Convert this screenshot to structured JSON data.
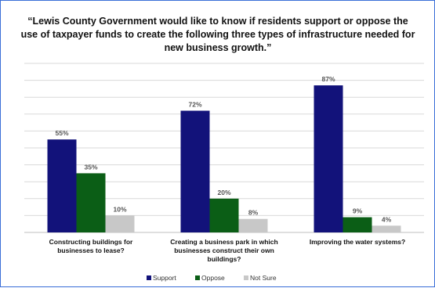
{
  "chart_data": {
    "type": "bar",
    "title": "“Lewis County Government would like to know if residents support or oppose the use of taxpayer funds to create the following three types of infrastructure needed for new business growth.”",
    "categories": [
      "Constructing buildings for businesses to lease?",
      "Creating a business park in which businesses construct their own buildings?",
      "Improving the water systems?"
    ],
    "series": [
      {
        "name": "Support",
        "values": [
          55,
          72,
          87
        ],
        "labels": [
          "55%",
          "72%",
          "87%"
        ],
        "color": "#12127a"
      },
      {
        "name": "Oppose",
        "values": [
          35,
          20,
          9
        ],
        "labels": [
          "35%",
          "20%",
          "9%"
        ],
        "color": "#0b5e16"
      },
      {
        "name": "Not Sure",
        "values": [
          10,
          8,
          4
        ],
        "labels": [
          "10%",
          "8%",
          "4%"
        ],
        "color": "#c8c8c8"
      }
    ],
    "ylim": [
      0,
      100
    ],
    "grid": true,
    "legend_position": "bottom"
  }
}
